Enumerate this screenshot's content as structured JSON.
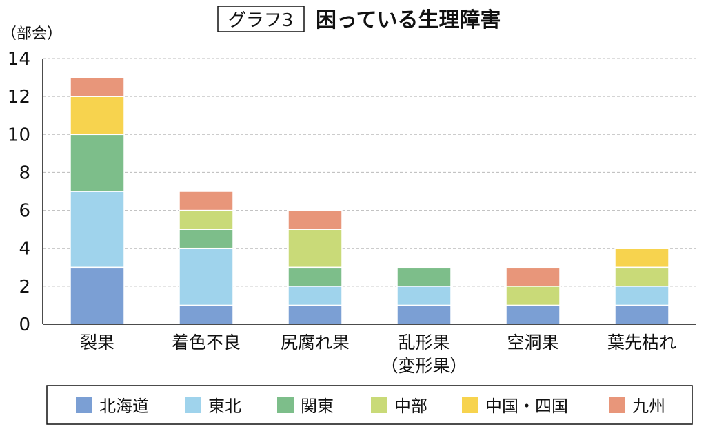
{
  "chart_data": {
    "type": "bar",
    "stacked": true,
    "title_badge": "グラフ3",
    "title": "困っている生理障害",
    "ylabel": "（部会）",
    "xlabel": "",
    "ylim": [
      0,
      14
    ],
    "yticks": [
      0,
      2,
      4,
      6,
      8,
      10,
      12,
      14
    ],
    "grid": true,
    "legend_position": "bottom",
    "categories": [
      "裂果",
      "着色不良",
      "尻腐れ果",
      "乱形果\n（変形果）",
      "空洞果",
      "葉先枯れ"
    ],
    "series": [
      {
        "name": "北海道",
        "color": "#7b9fd4",
        "values": [
          3,
          1,
          1,
          1,
          1,
          1
        ]
      },
      {
        "name": "東北",
        "color": "#9fd3ec",
        "values": [
          4,
          3,
          1,
          1,
          0,
          1
        ]
      },
      {
        "name": "関東",
        "color": "#7dbe8a",
        "values": [
          3,
          1,
          1,
          1,
          0,
          0
        ]
      },
      {
        "name": "中部",
        "color": "#c9da78",
        "values": [
          0,
          1,
          2,
          0,
          1,
          1
        ]
      },
      {
        "name": "中国・四国",
        "color": "#f7d34e",
        "values": [
          2,
          0,
          0,
          0,
          0,
          1
        ]
      },
      {
        "name": "九州",
        "color": "#e8967a",
        "values": [
          1,
          1,
          1,
          0,
          1,
          0
        ]
      }
    ]
  }
}
